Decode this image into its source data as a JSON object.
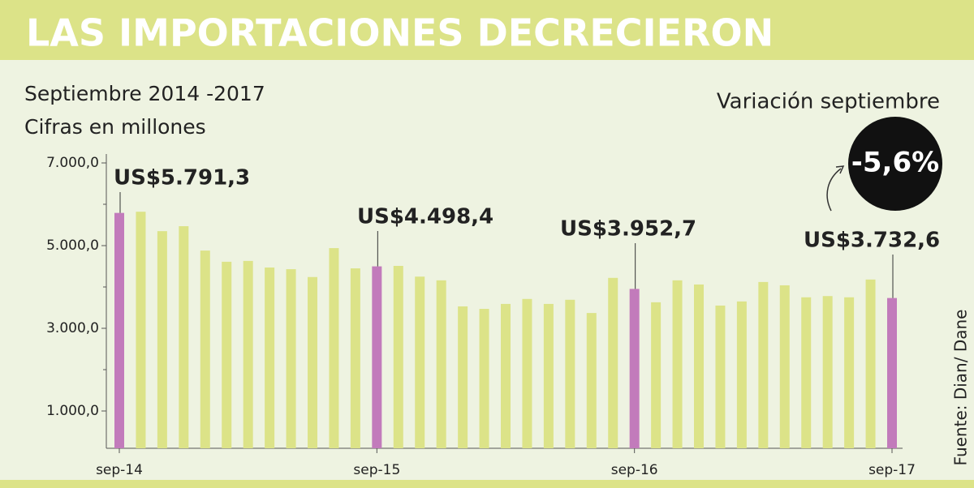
{
  "chart_data": {
    "type": "bar",
    "title": "LAS IMPORTACIONES DECRECIERON",
    "subtitle": [
      "Septiembre 2014 -2017",
      "Cifras en millones"
    ],
    "annotation": {
      "label": "Variación septiembre",
      "value": -5.6,
      "value_label": "-5,6%"
    },
    "source": "Fuente: Dian/ Dane",
    "categories": [
      "sep-14",
      null,
      null,
      null,
      null,
      null,
      null,
      null,
      null,
      null,
      null,
      null,
      "sep-15",
      null,
      null,
      null,
      null,
      null,
      null,
      null,
      null,
      null,
      null,
      null,
      "sep-16",
      null,
      null,
      null,
      null,
      null,
      null,
      null,
      null,
      null,
      null,
      null,
      "sep-17"
    ],
    "values": [
      5791.3,
      5820,
      5350,
      5470,
      4880,
      4610,
      4630,
      4470,
      4430,
      4240,
      4940,
      4450,
      4498.4,
      4510,
      4250,
      4160,
      3530,
      3470,
      3590,
      3710,
      3590,
      3690,
      3370,
      4220,
      3952.7,
      3630,
      4160,
      4060,
      3550,
      3650,
      4120,
      4040,
      3750,
      3780,
      3750,
      4180,
      3732.6
    ],
    "value_labels": [
      "US$5.791,3",
      null,
      null,
      null,
      null,
      null,
      null,
      null,
      null,
      null,
      null,
      null,
      "US$4.498,4",
      null,
      null,
      null,
      null,
      null,
      null,
      null,
      null,
      null,
      null,
      null,
      "US$3.952,7",
      null,
      null,
      null,
      null,
      null,
      null,
      null,
      null,
      null,
      null,
      null,
      "US$3.732,6"
    ],
    "colors": [
      "#c27bbb",
      "#dce388",
      "#dce388",
      "#dce388",
      "#dce388",
      "#dce388",
      "#dce388",
      "#dce388",
      "#dce388",
      "#dce388",
      "#dce388",
      "#dce388",
      "#c27bbb",
      "#dce388",
      "#dce388",
      "#dce388",
      "#dce388",
      "#dce388",
      "#dce388",
      "#dce388",
      "#dce388",
      "#dce388",
      "#dce388",
      "#dce388",
      "#c27bbb",
      "#dce388",
      "#dce388",
      "#dce388",
      "#dce388",
      "#dce388",
      "#dce388",
      "#dce388",
      "#dce388",
      "#dce388",
      "#dce388",
      "#dce388",
      "#c27bbb"
    ],
    "ylim": [
      0,
      7000
    ],
    "yticks": [
      {
        "value": 1000,
        "label": "1.000,0"
      },
      {
        "value": 3000,
        "label": "3.000,0"
      },
      {
        "value": 5000,
        "label": "5.000,0"
      },
      {
        "value": 7000,
        "label": "7.000,0"
      }
    ],
    "minor_yticks": [
      2000,
      4000,
      6000
    ]
  }
}
